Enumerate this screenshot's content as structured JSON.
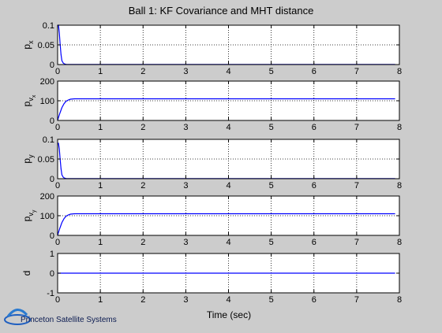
{
  "figure": {
    "title": "Ball 1: KF Covariance and MHT distance",
    "xlabel": "Time (sec)",
    "brand": "Princeton Satellite Systems"
  },
  "colors": {
    "background": "#cccccc",
    "axes": "#ffffff",
    "line": "#0000ff",
    "grid": "#000000"
  },
  "chart_data": [
    {
      "type": "line",
      "ylabel": "p",
      "ylabel_sub": "x",
      "xlim": [
        0,
        8
      ],
      "ylim": [
        0,
        0.1
      ],
      "xticks": [
        0,
        1,
        2,
        3,
        4,
        5,
        6,
        7,
        8
      ],
      "yticks": [
        0,
        0.05,
        0.1
      ],
      "ytick_labels": [
        "0",
        "0.05",
        "0.1"
      ],
      "grid": true,
      "series": [
        {
          "x": [
            0,
            0.02,
            0.04,
            0.06,
            0.08,
            0.1,
            0.13,
            0.16,
            0.2,
            0.3,
            0.5,
            1,
            2,
            3,
            4,
            5,
            6,
            7,
            7.9
          ],
          "y": [
            0.1,
            0.1,
            0.08,
            0.05,
            0.025,
            0.01,
            0.004,
            0.0015,
            0.0006,
            0.0003,
            0.0002,
            0.0002,
            0.0002,
            0.0002,
            0.0002,
            0.0002,
            0.0002,
            0.0002,
            0.0002
          ]
        }
      ]
    },
    {
      "type": "line",
      "ylabel": "p",
      "ylabel_sub": "v",
      "ylabel_subsub": "x",
      "xlim": [
        0,
        8
      ],
      "ylim": [
        0,
        200
      ],
      "xticks": [
        0,
        1,
        2,
        3,
        4,
        5,
        6,
        7,
        8
      ],
      "yticks": [
        0,
        100,
        200
      ],
      "ytick_labels": [
        "0",
        "100",
        "200"
      ],
      "grid": true,
      "series": [
        {
          "x": [
            0,
            0.02,
            0.05,
            0.1,
            0.15,
            0.2,
            0.25,
            0.3,
            0.35,
            0.4,
            0.5,
            0.7,
            1,
            2,
            3,
            4,
            5,
            6,
            7,
            7.9
          ],
          "y": [
            0,
            15,
            35,
            65,
            85,
            98,
            104,
            108,
            109,
            110,
            110,
            110,
            110,
            110,
            110,
            110,
            110,
            110,
            110,
            110
          ]
        }
      ]
    },
    {
      "type": "line",
      "ylabel": "p",
      "ylabel_sub": "y",
      "xlim": [
        0,
        8
      ],
      "ylim": [
        0,
        0.1
      ],
      "xticks": [
        0,
        1,
        2,
        3,
        4,
        5,
        6,
        7,
        8
      ],
      "yticks": [
        0,
        0.05,
        0.1
      ],
      "ytick_labels": [
        "0",
        "0.05",
        "0.1"
      ],
      "grid": true,
      "series": [
        {
          "x": [
            0,
            0.02,
            0.04,
            0.06,
            0.08,
            0.1,
            0.13,
            0.16,
            0.2,
            0.3,
            0.5,
            1,
            2,
            3,
            4,
            5,
            6,
            7,
            7.9
          ],
          "y": [
            0.09,
            0.09,
            0.075,
            0.048,
            0.025,
            0.01,
            0.004,
            0.0015,
            0.0006,
            0.0003,
            0.0002,
            0.0002,
            0.0002,
            0.0002,
            0.0002,
            0.0002,
            0.0002,
            0.0002,
            0.0002
          ]
        }
      ]
    },
    {
      "type": "line",
      "ylabel": "p",
      "ylabel_sub": "v",
      "ylabel_subsub": "y",
      "xlim": [
        0,
        8
      ],
      "ylim": [
        0,
        200
      ],
      "xticks": [
        0,
        1,
        2,
        3,
        4,
        5,
        6,
        7,
        8
      ],
      "yticks": [
        0,
        100,
        200
      ],
      "ytick_labels": [
        "0",
        "100",
        "200"
      ],
      "grid": true,
      "series": [
        {
          "x": [
            0,
            0.02,
            0.05,
            0.1,
            0.15,
            0.2,
            0.25,
            0.3,
            0.35,
            0.4,
            0.5,
            0.7,
            1,
            2,
            3,
            4,
            5,
            6,
            7,
            7.9
          ],
          "y": [
            0,
            15,
            35,
            65,
            85,
            98,
            104,
            108,
            109,
            110,
            110,
            110,
            110,
            110,
            110,
            110,
            110,
            110,
            110,
            110
          ]
        }
      ]
    },
    {
      "type": "line",
      "ylabel": "d",
      "xlim": [
        0,
        8
      ],
      "ylim": [
        -1,
        1
      ],
      "xticks": [
        0,
        1,
        2,
        3,
        4,
        5,
        6,
        7,
        8
      ],
      "yticks": [
        -1,
        0,
        1
      ],
      "ytick_labels": [
        "-1",
        "0",
        "1"
      ],
      "grid": true,
      "series": [
        {
          "x": [
            0,
            7.9
          ],
          "y": [
            0,
            0
          ]
        }
      ]
    }
  ]
}
